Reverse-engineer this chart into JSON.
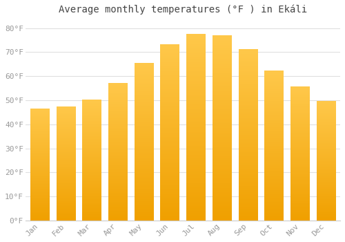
{
  "title": "Average monthly temperatures (°F ) in Ekáli",
  "months": [
    "Jan",
    "Feb",
    "Mar",
    "Apr",
    "May",
    "Jun",
    "Jul",
    "Aug",
    "Sep",
    "Oct",
    "Nov",
    "Dec"
  ],
  "values": [
    46.4,
    47.3,
    50.2,
    57.0,
    65.5,
    73.2,
    77.5,
    77.0,
    71.2,
    62.3,
    55.5,
    49.5
  ],
  "bar_color_top": "#FFC84A",
  "bar_color_bottom": "#F0A000",
  "bar_edge_color": "#E8A000",
  "background_color": "#FFFFFF",
  "grid_color": "#E0E0E0",
  "ylim": [
    0,
    84
  ],
  "ytick_step": 10,
  "title_fontsize": 10,
  "tick_fontsize": 8,
  "tick_font_color": "#999999"
}
